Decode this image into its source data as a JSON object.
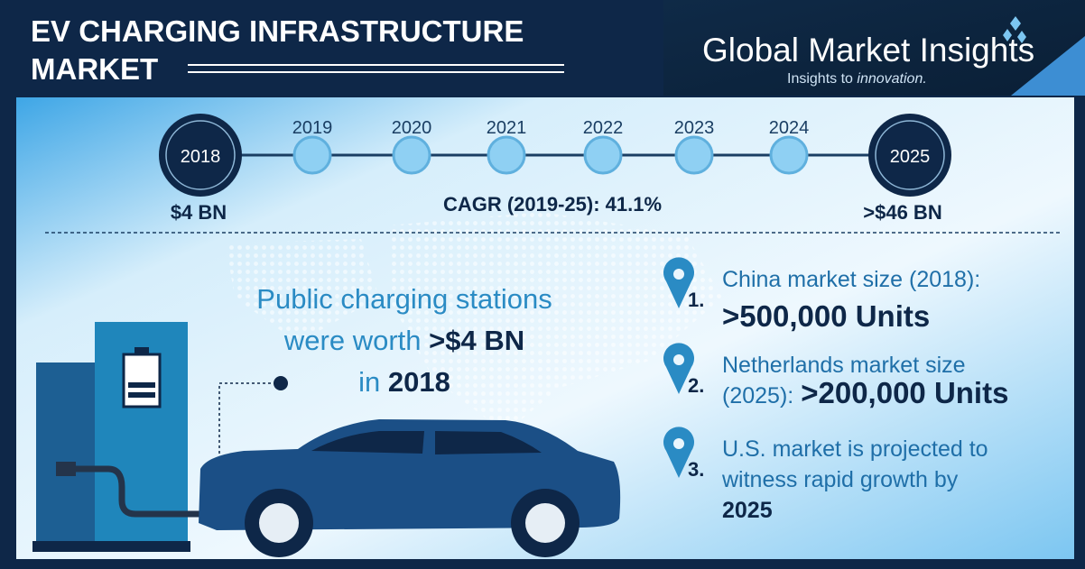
{
  "header": {
    "title_lines": [
      "EV CHARGING INFRASTRUCTURE",
      "MARKET"
    ]
  },
  "logo": {
    "name": "Global Market Insights",
    "tagline_start": "Insights to",
    "tagline_end": "innovation."
  },
  "timeline": {
    "years": [
      "2018",
      "2019",
      "2020",
      "2021",
      "2022",
      "2023",
      "2024",
      "2025"
    ],
    "start_value": "$4 BN",
    "cagr": "CAGR (2019-25): 41.1%",
    "end_value": ">$46 BN"
  },
  "highlight": {
    "line1": "Public charging stations",
    "line2_start": "were worth",
    "line2_value": ">$4 BN",
    "line3_start": "in",
    "line3_year": "2018"
  },
  "facts": [
    {
      "number": "1.",
      "lines": [
        "China market size (2018):"
      ],
      "value": ">500,000 Units"
    },
    {
      "number": "2.",
      "lines": [
        "Netherlands market size",
        "(2025):"
      ],
      "value": ">200,000 Units"
    },
    {
      "number": "3.",
      "lines": [
        "U.S. market is projected to",
        "witness rapid growth by"
      ],
      "value": "2025"
    }
  ]
}
